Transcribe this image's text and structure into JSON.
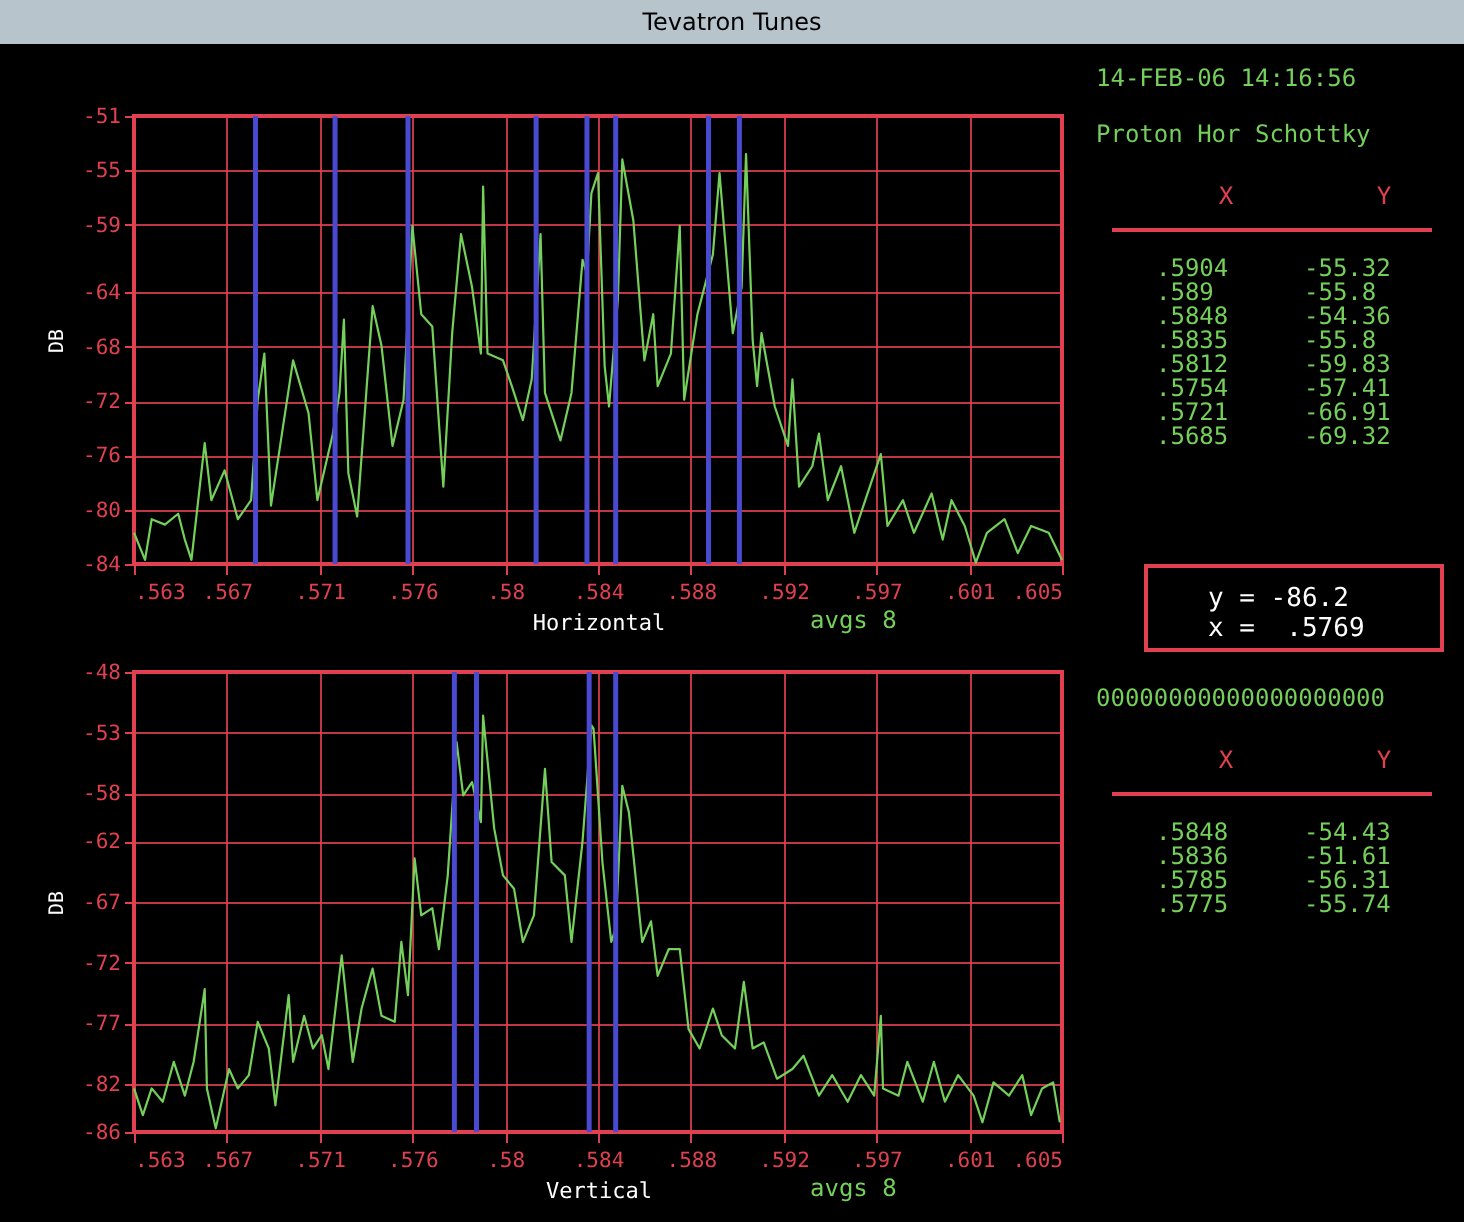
{
  "chart_data": [
    {
      "type": "line",
      "title": "Tevatron Tunes",
      "xlabel": "Horizontal",
      "ylabel": "DB",
      "grid": true,
      "marker": "none",
      "line_style": "solid",
      "annotations": [
        "avgs 8",
        "14-FEB-06 14:16:56",
        "Proton Hor Schottky",
        "X",
        "Y",
        ".5904",
        "-55.32",
        ".589",
        "-55.8",
        ".5848",
        "-54.36",
        ".5835",
        "-55.8",
        ".5812",
        "-59.83",
        ".5754",
        "-57.41",
        ".5721",
        "-66.91",
        ".5685",
        "-69.32",
        "y = -86.2",
        "x =  .5769"
      ],
      "xlim": [
        0.563,
        0.605
      ],
      "xticks": [
        {
          "value": 0.563,
          "label": ".563"
        },
        {
          "value": 0.5672,
          "label": ".567"
        },
        {
          "value": 0.5714,
          "label": ".571"
        },
        {
          "value": 0.5756,
          "label": ".576"
        },
        {
          "value": 0.5798,
          "label": ".58"
        },
        {
          "value": 0.584,
          "label": ".584"
        },
        {
          "value": 0.5882,
          "label": ".588"
        },
        {
          "value": 0.5924,
          "label": ".592"
        },
        {
          "value": 0.5966,
          "label": ".597"
        },
        {
          "value": 0.6008,
          "label": ".601"
        },
        {
          "value": 0.605,
          "label": ".605"
        }
      ],
      "ylim": [
        -84,
        -51
      ],
      "yticks": [
        -51,
        -55,
        -59,
        -64,
        -68,
        -72,
        -76,
        -80,
        -84
      ],
      "ref_lines": [
        {
          "axis": "x",
          "value": 0.5904,
          "color": "#4a4ad0"
        },
        {
          "axis": "x",
          "value": 0.589,
          "color": "#4a4ad0"
        },
        {
          "axis": "x",
          "value": 0.5848,
          "color": "#4a4ad0"
        },
        {
          "axis": "x",
          "value": 0.5835,
          "color": "#4a4ad0"
        },
        {
          "axis": "x",
          "value": 0.5812,
          "color": "#4a4ad0"
        },
        {
          "axis": "x",
          "value": 0.5754,
          "color": "#4a4ad0"
        },
        {
          "axis": "x",
          "value": 0.5721,
          "color": "#4a4ad0"
        },
        {
          "axis": "x",
          "value": 0.5685,
          "color": "#4a4ad0"
        }
      ],
      "series": [
        {
          "color": "#74d05a",
          "x": [
            0.563,
            0.5635,
            0.5638,
            0.5644,
            0.565,
            0.5653,
            0.5656,
            0.5662,
            0.5665,
            0.5671,
            0.5677,
            0.5683,
            0.5686,
            0.5689,
            0.5692,
            0.5702,
            0.5709,
            0.5713,
            0.572,
            0.5723,
            0.5725,
            0.5727,
            0.5731,
            0.5738,
            0.5742,
            0.5747,
            0.5752,
            0.5756,
            0.576,
            0.5765,
            0.577,
            0.5774,
            0.5778,
            0.5783,
            0.5787,
            0.5788,
            0.579,
            0.5797,
            0.5801,
            0.5806,
            0.581,
            0.5814,
            0.5816,
            0.5823,
            0.5828,
            0.5833,
            0.5835,
            0.5837,
            0.584,
            0.5843,
            0.5845,
            0.5849,
            0.5851,
            0.5856,
            0.5861,
            0.5865,
            0.5867,
            0.5873,
            0.5877,
            0.5879,
            0.5885,
            0.5892,
            0.5895,
            0.5901,
            0.5905,
            0.5907,
            0.591,
            0.5912,
            0.5914,
            0.592,
            0.5926,
            0.5928,
            0.5931,
            0.5937,
            0.594,
            0.5944,
            0.595,
            0.5956,
            0.5962,
            0.5968,
            0.5971,
            0.5978,
            0.5983,
            0.5991,
            0.5996,
            0.6,
            0.6006,
            0.6011,
            0.6016,
            0.6024,
            0.603,
            0.6036,
            0.6044,
            0.605
          ],
          "values": [
            -81.7,
            -83.7,
            -80.7,
            -81.1,
            -80.3,
            -82.2,
            -83.7,
            -75.1,
            -79.3,
            -77.1,
            -80.7,
            -79.3,
            -71.9,
            -68.5,
            -79.7,
            -69,
            -72.9,
            -79.3,
            -74.4,
            -71.4,
            -66,
            -77.3,
            -80.5,
            -65,
            -67.9,
            -75.3,
            -71.9,
            -59.1,
            -65.6,
            -66.5,
            -78.3,
            -67,
            -59.7,
            -63.6,
            -68.5,
            -56.2,
            -68.5,
            -69,
            -70.9,
            -73.4,
            -70.4,
            -59.7,
            -71.4,
            -74.9,
            -71.4,
            -61.6,
            -62.6,
            -56.7,
            -55.2,
            -69.4,
            -72.4,
            -64.5,
            -54.2,
            -58.7,
            -69,
            -65.6,
            -70.9,
            -68.5,
            -59.1,
            -71.9,
            -65.6,
            -61.2,
            -55.2,
            -67,
            -63.6,
            -53.8,
            -67.5,
            -70.9,
            -67,
            -72.4,
            -75.3,
            -70.4,
            -78.3,
            -76.8,
            -74.4,
            -79.3,
            -76.8,
            -81.7,
            -78.8,
            -75.9,
            -81.2,
            -79.3,
            -81.7,
            -78.8,
            -82.2,
            -79.3,
            -81.2,
            -83.9,
            -81.7,
            -80.7,
            -83.2,
            -81.2,
            -81.7,
            -83.7
          ]
        }
      ]
    },
    {
      "type": "line",
      "xlabel": "Vertical",
      "ylabel": "DB",
      "grid": true,
      "marker": "none",
      "line_style": "solid",
      "annotations": [
        "avgs 8",
        "00000000000000000000",
        "X",
        "Y",
        ".5848",
        "-54.43",
        ".5836",
        "-51.61",
        ".5785",
        "-56.31",
        ".5775",
        "-55.74"
      ],
      "xlim": [
        0.563,
        0.605
      ],
      "xticks": [
        {
          "value": 0.563,
          "label": ".563"
        },
        {
          "value": 0.5672,
          "label": ".567"
        },
        {
          "value": 0.5714,
          "label": ".571"
        },
        {
          "value": 0.5756,
          "label": ".576"
        },
        {
          "value": 0.5798,
          "label": ".58"
        },
        {
          "value": 0.584,
          "label": ".584"
        },
        {
          "value": 0.5882,
          "label": ".588"
        },
        {
          "value": 0.5924,
          "label": ".592"
        },
        {
          "value": 0.5966,
          "label": ".597"
        },
        {
          "value": 0.6008,
          "label": ".601"
        },
        {
          "value": 0.605,
          "label": ".605"
        }
      ],
      "ylim": [
        -86,
        -48
      ],
      "yticks": [
        -48,
        -53,
        -58,
        -62,
        -67,
        -72,
        -77,
        -82,
        -86
      ],
      "ref_lines": [
        {
          "axis": "x",
          "value": 0.5848,
          "color": "#4a4ad0"
        },
        {
          "axis": "x",
          "value": 0.5836,
          "color": "#4a4ad0"
        },
        {
          "axis": "x",
          "value": 0.5785,
          "color": "#4a4ad0"
        },
        {
          "axis": "x",
          "value": 0.5775,
          "color": "#4a4ad0"
        }
      ],
      "series": [
        {
          "color": "#74d05a",
          "x": [
            0.563,
            0.5634,
            0.5638,
            0.5643,
            0.5648,
            0.5653,
            0.5657,
            0.5662,
            0.5663,
            0.5667,
            0.5673,
            0.5677,
            0.5682,
            0.5686,
            0.5691,
            0.5694,
            0.57,
            0.5702,
            0.5707,
            0.5711,
            0.5715,
            0.5718,
            0.5724,
            0.5729,
            0.5733,
            0.5738,
            0.5742,
            0.5748,
            0.5751,
            0.5754,
            0.5757,
            0.576,
            0.5765,
            0.5768,
            0.5772,
            0.5776,
            0.5779,
            0.5783,
            0.5787,
            0.5788,
            0.5793,
            0.5797,
            0.5802,
            0.5806,
            0.5811,
            0.5816,
            0.5819,
            0.5825,
            0.5828,
            0.5833,
            0.5837,
            0.5838,
            0.5842,
            0.5846,
            0.5848,
            0.5851,
            0.5854,
            0.5856,
            0.586,
            0.5864,
            0.5867,
            0.5872,
            0.5877,
            0.5881,
            0.5886,
            0.5892,
            0.5896,
            0.5902,
            0.5906,
            0.591,
            0.5915,
            0.5921,
            0.5928,
            0.5933,
            0.594,
            0.5946,
            0.5953,
            0.5959,
            0.5965,
            0.5968,
            0.5969,
            0.5976,
            0.598,
            0.5987,
            0.5992,
            0.5997,
            0.6003,
            0.601,
            0.6014,
            0.6019,
            0.6026,
            0.6032,
            0.6036,
            0.6041,
            0.6046,
            0.6049
          ],
          "values": [
            -82.4,
            -84.6,
            -82.4,
            -83.5,
            -80.2,
            -83,
            -80.2,
            -74.2,
            -82.4,
            -85.7,
            -80.8,
            -82.4,
            -81.3,
            -76.9,
            -79.1,
            -83.8,
            -74.7,
            -80.2,
            -76.4,
            -79.1,
            -78,
            -80.8,
            -71.4,
            -80.2,
            -75.8,
            -72.5,
            -76.4,
            -76.9,
            -70.3,
            -74.7,
            -63.4,
            -68.1,
            -67.5,
            -70.9,
            -64.8,
            -53.8,
            -58.2,
            -57.1,
            -60.4,
            -51.6,
            -60.9,
            -64.8,
            -65.9,
            -70.3,
            -68.1,
            -56,
            -63.7,
            -64.8,
            -70.3,
            -62,
            -52.4,
            -52.7,
            -63.7,
            -70.3,
            -69.2,
            -57.4,
            -59.6,
            -63.1,
            -70.3,
            -68.6,
            -73.1,
            -70.9,
            -70.9,
            -77.5,
            -79.1,
            -75.8,
            -78,
            -79.1,
            -73.6,
            -79.1,
            -78.6,
            -81.6,
            -80.8,
            -79.7,
            -83,
            -81.3,
            -83.5,
            -81.3,
            -83,
            -76.4,
            -82.4,
            -83,
            -80.2,
            -83.5,
            -80.2,
            -83.5,
            -81.3,
            -83,
            -85.2,
            -81.9,
            -83,
            -81.3,
            -84.6,
            -82.4,
            -81.9,
            -85.2
          ]
        }
      ]
    }
  ]
}
